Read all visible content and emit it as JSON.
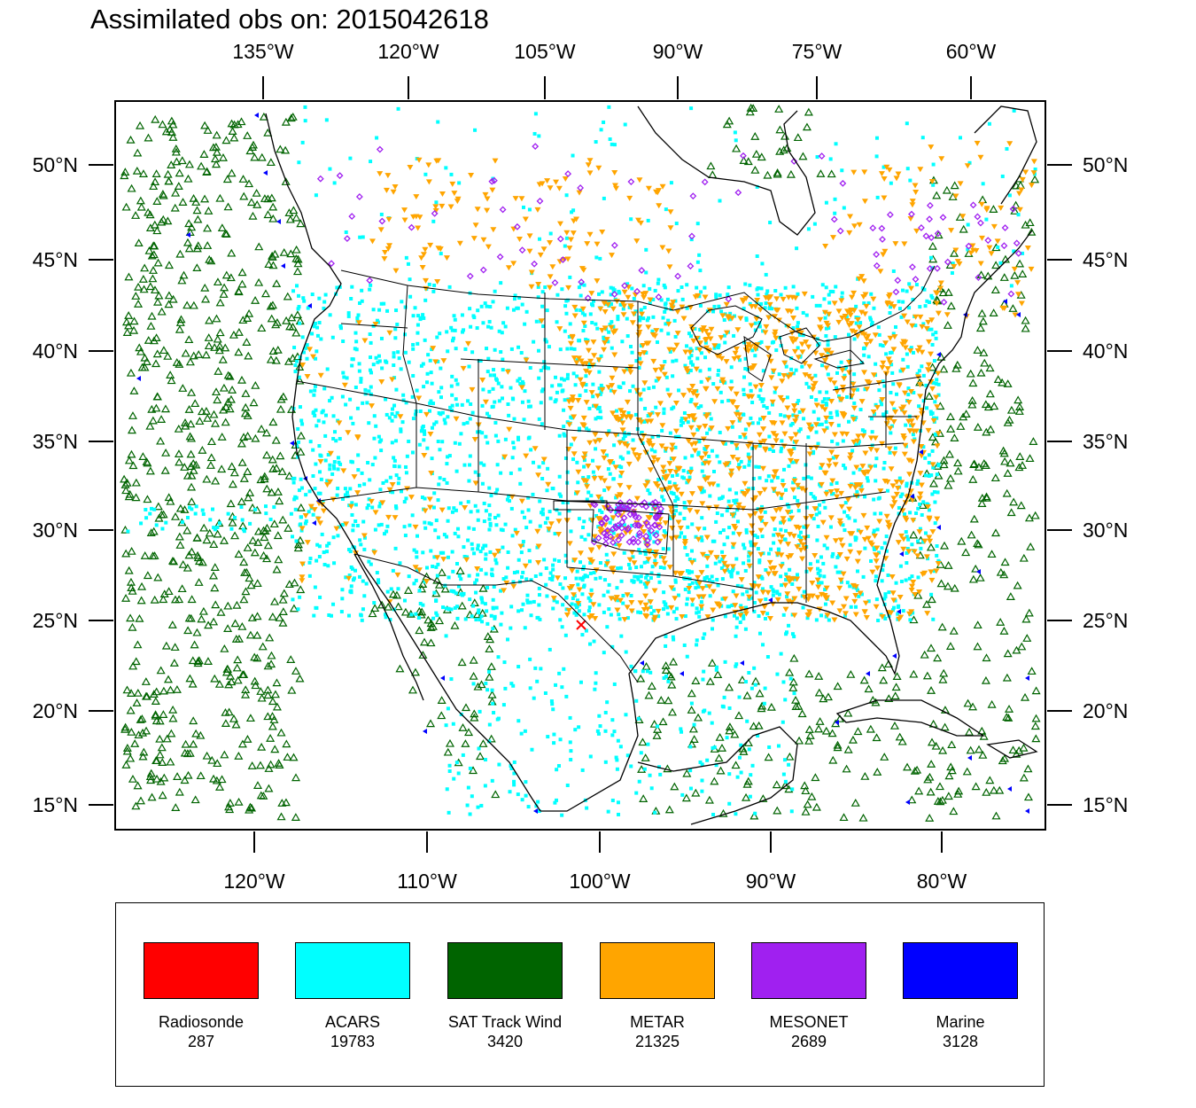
{
  "title": "Assimilated obs on: 2015042618",
  "map": {
    "top_lon_ticks": [
      "135°W",
      "120°W",
      "105°W",
      "90°W",
      "75°W",
      "60°W"
    ],
    "bottom_lon_ticks": [
      "120°W",
      "110°W",
      "100°W",
      "90°W",
      "80°W"
    ],
    "lat_ticks": [
      "50°N",
      "45°N",
      "40°N",
      "35°N",
      "30°N",
      "25°N",
      "20°N",
      "15°N"
    ],
    "extent": {
      "lon_min": -128,
      "lon_max": -74,
      "lat_min": 14,
      "lat_max": 54
    },
    "colors": {
      "radiosonde": "#ff0000",
      "acars": "#00ffff",
      "sat_track_wind": "#006400",
      "metar": "#ffa500",
      "mesonet": "#a020f0",
      "marine": "#0000ff",
      "border": "#000000"
    }
  },
  "legend": [
    {
      "name": "Radiosonde",
      "count": "287",
      "color": "#ff0000"
    },
    {
      "name": "ACARS",
      "count": "19783",
      "color": "#00ffff"
    },
    {
      "name": "SAT Track Wind",
      "count": "3420",
      "color": "#006400"
    },
    {
      "name": "METAR",
      "count": "21325",
      "color": "#ffa500"
    },
    {
      "name": "MESONET",
      "count": "2689",
      "color": "#a020f0"
    },
    {
      "name": "Marine",
      "count": "3128",
      "color": "#0000ff"
    }
  ]
}
